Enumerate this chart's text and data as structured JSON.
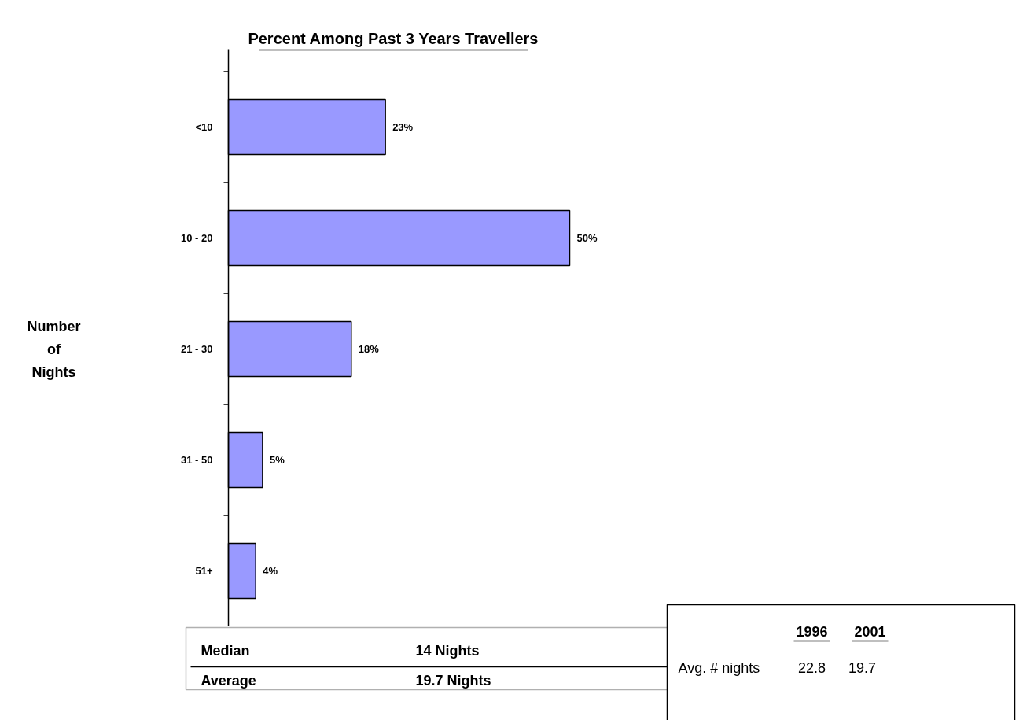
{
  "chart_data": {
    "type": "bar",
    "orientation": "horizontal",
    "title": "Percent Among Past 3 Years Travellers",
    "categories": [
      "<10",
      "10 - 20",
      "21 - 30",
      "31 - 50",
      "51+"
    ],
    "values": [
      23,
      50,
      18,
      5,
      4
    ],
    "value_labels": [
      "23%",
      "50%",
      "18%",
      "5%",
      "4%"
    ],
    "color": "#9999ff",
    "grid": false,
    "annotations": [
      "Number\nof\nNights",
      "Median",
      "14 Nights",
      "Average",
      "19.7 Nights",
      "1996",
      "2001",
      "Avg. # nights",
      "22.8",
      "19.7"
    ]
  }
}
